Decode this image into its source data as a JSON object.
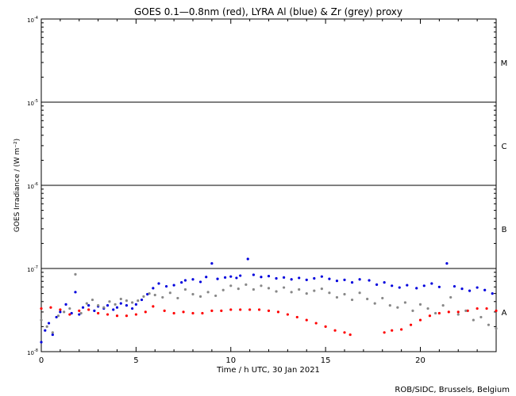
{
  "chart_data": {
    "type": "scatter",
    "title": "GOES 0.1—0.8nm (red), LYRA Al (blue) & Zr (grey) proxy",
    "xlabel": "Time / h UTC, 30 Jan 2021",
    "ylabel": "GOES Irradiance / (W m⁻²)",
    "xlim": [
      0,
      24
    ],
    "ylim": [
      1e-08,
      0.0001
    ],
    "yscale": "log",
    "x_ticks": [
      0,
      5,
      10,
      15,
      20
    ],
    "x_tick_labels": [
      "0",
      "5",
      "10",
      "15",
      "20"
    ],
    "y_ticks": [
      1e-08,
      1e-07,
      1e-06,
      1e-05,
      0.0001
    ],
    "y_tick_labels": [
      {
        "base": "10",
        "exp": "-8"
      },
      {
        "base": "10",
        "exp": "-7"
      },
      {
        "base": "10",
        "exp": "-6"
      },
      {
        "base": "10",
        "exp": "-5"
      },
      {
        "base": "10",
        "exp": "-4"
      }
    ],
    "class_lines": [
      1e-07,
      1e-06,
      1e-05
    ],
    "class_labels": [
      {
        "label": "A",
        "y": 3e-08
      },
      {
        "label": "B",
        "y": 3e-07
      },
      {
        "label": "C",
        "y": 3e-06
      },
      {
        "label": "M",
        "y": 3e-05
      }
    ],
    "grid": false,
    "series": [
      {
        "name": "GOES 0.1—0.8nm",
        "color": "#ff0000",
        "points": [
          [
            0.0,
            3.3e-08
          ],
          [
            0.5,
            3.4e-08
          ],
          [
            1.0,
            3.2e-08
          ],
          [
            1.5,
            2.8e-08
          ],
          [
            2.0,
            3.1e-08
          ],
          [
            2.5,
            3.2e-08
          ],
          [
            3.0,
            2.9e-08
          ],
          [
            3.5,
            2.8e-08
          ],
          [
            4.0,
            2.7e-08
          ],
          [
            4.5,
            2.7e-08
          ],
          [
            5.0,
            2.8e-08
          ],
          [
            5.5,
            3e-08
          ],
          [
            5.9,
            3.5e-08
          ],
          [
            6.5,
            3.1e-08
          ],
          [
            7.0,
            2.9e-08
          ],
          [
            7.5,
            3e-08
          ],
          [
            8.0,
            2.9e-08
          ],
          [
            8.5,
            2.9e-08
          ],
          [
            9.0,
            3.1e-08
          ],
          [
            9.5,
            3.1e-08
          ],
          [
            10.0,
            3.2e-08
          ],
          [
            10.5,
            3.2e-08
          ],
          [
            11.0,
            3.2e-08
          ],
          [
            11.5,
            3.2e-08
          ],
          [
            12.0,
            3.1e-08
          ],
          [
            12.5,
            3e-08
          ],
          [
            13.0,
            2.8e-08
          ],
          [
            13.5,
            2.6e-08
          ],
          [
            14.0,
            2.4e-08
          ],
          [
            14.5,
            2.2e-08
          ],
          [
            15.0,
            2e-08
          ],
          [
            15.5,
            1.8e-08
          ],
          [
            16.0,
            1.7e-08
          ],
          [
            16.3,
            1.6e-08
          ],
          [
            18.1,
            1.7e-08
          ],
          [
            18.5,
            1.8e-08
          ],
          [
            19.0,
            1.85e-08
          ],
          [
            19.5,
            2.1e-08
          ],
          [
            20.0,
            2.4e-08
          ],
          [
            20.5,
            2.7e-08
          ],
          [
            21.0,
            2.9e-08
          ],
          [
            21.5,
            3e-08
          ],
          [
            22.0,
            3e-08
          ],
          [
            22.5,
            3.1e-08
          ],
          [
            23.0,
            3.3e-08
          ],
          [
            23.5,
            3.3e-08
          ],
          [
            24.0,
            3.1e-08
          ]
        ]
      },
      {
        "name": "LYRA Al",
        "color": "#0000dd",
        "points": [
          [
            0.0,
            1.3e-08
          ],
          [
            0.2,
            1.8e-08
          ],
          [
            0.4,
            2.2e-08
          ],
          [
            0.6,
            1.6e-08
          ],
          [
            0.8,
            2.6e-08
          ],
          [
            1.0,
            3e-08
          ],
          [
            1.3,
            3.7e-08
          ],
          [
            1.6,
            2.9e-08
          ],
          [
            1.8,
            5.2e-08
          ],
          [
            2.0,
            2.8e-08
          ],
          [
            2.2,
            3.4e-08
          ],
          [
            2.5,
            3.6e-08
          ],
          [
            2.8,
            3.1e-08
          ],
          [
            3.0,
            3.5e-08
          ],
          [
            3.3,
            3.3e-08
          ],
          [
            3.5,
            3.6e-08
          ],
          [
            3.8,
            3.2e-08
          ],
          [
            4.0,
            3.4e-08
          ],
          [
            4.2,
            3.8e-08
          ],
          [
            4.5,
            3.6e-08
          ],
          [
            4.8,
            3.3e-08
          ],
          [
            5.0,
            3.7e-08
          ],
          [
            5.3,
            4.2e-08
          ],
          [
            5.6,
            4.9e-08
          ],
          [
            5.9,
            5.8e-08
          ],
          [
            6.2,
            6.6e-08
          ],
          [
            6.6,
            6.1e-08
          ],
          [
            7.0,
            6.3e-08
          ],
          [
            7.4,
            6.8e-08
          ],
          [
            7.6,
            7.2e-08
          ],
          [
            8.0,
            7.4e-08
          ],
          [
            8.4,
            6.9e-08
          ],
          [
            8.7,
            7.9e-08
          ],
          [
            9.0,
            1.15e-07
          ],
          [
            9.3,
            7.5e-08
          ],
          [
            9.7,
            7.8e-08
          ],
          [
            10.0,
            8e-08
          ],
          [
            10.3,
            7.7e-08
          ],
          [
            10.5,
            8.2e-08
          ],
          [
            10.9,
            1.3e-07
          ],
          [
            11.2,
            8.4e-08
          ],
          [
            11.6,
            7.9e-08
          ],
          [
            12.0,
            8.1e-08
          ],
          [
            12.4,
            7.6e-08
          ],
          [
            12.8,
            7.8e-08
          ],
          [
            13.2,
            7.4e-08
          ],
          [
            13.6,
            7.7e-08
          ],
          [
            14.0,
            7.3e-08
          ],
          [
            14.4,
            7.6e-08
          ],
          [
            14.8,
            8e-08
          ],
          [
            15.2,
            7.5e-08
          ],
          [
            15.6,
            7.1e-08
          ],
          [
            16.0,
            7.3e-08
          ],
          [
            16.4,
            6.8e-08
          ],
          [
            16.8,
            7.4e-08
          ],
          [
            17.3,
            7.2e-08
          ],
          [
            17.7,
            6.4e-08
          ],
          [
            18.1,
            6.8e-08
          ],
          [
            18.5,
            6.2e-08
          ],
          [
            18.9,
            5.9e-08
          ],
          [
            19.3,
            6.3e-08
          ],
          [
            19.8,
            5.8e-08
          ],
          [
            20.2,
            6.2e-08
          ],
          [
            20.6,
            6.6e-08
          ],
          [
            21.0,
            6e-08
          ],
          [
            21.4,
            1.15e-07
          ],
          [
            21.8,
            6.1e-08
          ],
          [
            22.2,
            5.7e-08
          ],
          [
            22.6,
            5.4e-08
          ],
          [
            23.0,
            5.9e-08
          ],
          [
            23.4,
            5.5e-08
          ],
          [
            23.8,
            5e-08
          ]
        ]
      },
      {
        "name": "LYRA Zr",
        "color": "#888888",
        "points": [
          [
            0.0,
            2.4e-08
          ],
          [
            0.3,
            2e-08
          ],
          [
            0.6,
            1.7e-08
          ],
          [
            0.9,
            2.7e-08
          ],
          [
            1.2,
            3e-08
          ],
          [
            1.5,
            3.3e-08
          ],
          [
            1.8,
            8.5e-08
          ],
          [
            2.1,
            2.9e-08
          ],
          [
            2.4,
            3.8e-08
          ],
          [
            2.7,
            4.2e-08
          ],
          [
            3.0,
            3.6e-08
          ],
          [
            3.3,
            3.4e-08
          ],
          [
            3.6,
            4e-08
          ],
          [
            3.9,
            3.7e-08
          ],
          [
            4.2,
            4.3e-08
          ],
          [
            4.5,
            4.1e-08
          ],
          [
            4.8,
            3.9e-08
          ],
          [
            5.1,
            4.1e-08
          ],
          [
            5.4,
            4.6e-08
          ],
          [
            5.7,
            5e-08
          ],
          [
            6.0,
            4.8e-08
          ],
          [
            6.4,
            4.5e-08
          ],
          [
            6.8,
            5.1e-08
          ],
          [
            7.2,
            4.4e-08
          ],
          [
            7.6,
            5.6e-08
          ],
          [
            8.0,
            4.9e-08
          ],
          [
            8.4,
            4.6e-08
          ],
          [
            8.8,
            5.2e-08
          ],
          [
            9.2,
            4.7e-08
          ],
          [
            9.6,
            5.5e-08
          ],
          [
            10.0,
            6.2e-08
          ],
          [
            10.4,
            5.7e-08
          ],
          [
            10.8,
            6.4e-08
          ],
          [
            11.2,
            5.6e-08
          ],
          [
            11.6,
            6.2e-08
          ],
          [
            12.0,
            5.8e-08
          ],
          [
            12.4,
            5.3e-08
          ],
          [
            12.8,
            5.9e-08
          ],
          [
            13.2,
            5.2e-08
          ],
          [
            13.6,
            5.6e-08
          ],
          [
            14.0,
            5e-08
          ],
          [
            14.4,
            5.4e-08
          ],
          [
            14.8,
            5.7e-08
          ],
          [
            15.2,
            5.1e-08
          ],
          [
            15.6,
            4.5e-08
          ],
          [
            16.0,
            4.9e-08
          ],
          [
            16.4,
            4.2e-08
          ],
          [
            16.8,
            5.1e-08
          ],
          [
            17.2,
            4.3e-08
          ],
          [
            17.6,
            3.8e-08
          ],
          [
            18.0,
            4.4e-08
          ],
          [
            18.4,
            3.6e-08
          ],
          [
            18.8,
            3.4e-08
          ],
          [
            19.2,
            3.9e-08
          ],
          [
            19.6,
            3.1e-08
          ],
          [
            20.0,
            3.7e-08
          ],
          [
            20.4,
            3.3e-08
          ],
          [
            20.8,
            2.9e-08
          ],
          [
            21.2,
            3.6e-08
          ],
          [
            21.6,
            4.5e-08
          ],
          [
            22.0,
            2.8e-08
          ],
          [
            22.4,
            3.1e-08
          ],
          [
            22.8,
            2.4e-08
          ],
          [
            23.2,
            2.6e-08
          ],
          [
            23.6,
            2.1e-08
          ],
          [
            24.0,
            1.9e-08
          ]
        ]
      }
    ]
  },
  "footer": {
    "credit": "ROB/SIDC, Brussels, Belgium"
  }
}
